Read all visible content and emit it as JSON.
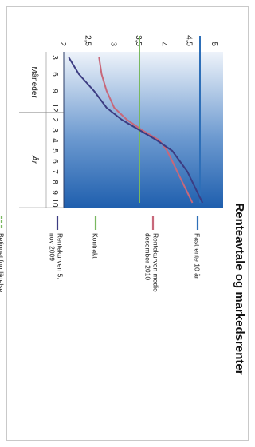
{
  "chart_data": {
    "type": "line",
    "title": "Renteavtale og markedsrenter",
    "xlabel_months": "Måneder",
    "xlabel_years": "År",
    "x_month_ticks": [
      "3",
      "6",
      "9",
      "12"
    ],
    "x_year_ticks": [
      "2",
      "3",
      "4",
      "5",
      "6",
      "7",
      "8",
      "9",
      "10"
    ],
    "y_ticks": [
      "2",
      "2,5",
      "3",
      "3,5",
      "4",
      "4,5",
      "5"
    ],
    "ylim": [
      2,
      5
    ],
    "x_positions": [
      0.25,
      0.5,
      0.75,
      1,
      2,
      3,
      4,
      5,
      6,
      7,
      8,
      9,
      10
    ],
    "legend_position": "right",
    "series": [
      {
        "name": "Fastrente 10 år",
        "style": "solid",
        "color": "#2e6fb8",
        "points": [
          [
            0,
            4.7
          ],
          [
            10,
            4.7
          ]
        ]
      },
      {
        "name": "Rentekurven medio desember 2010",
        "style": "solid",
        "color": "#c8687a",
        "points": [
          [
            0.25,
            2.7
          ],
          [
            0.5,
            2.75
          ],
          [
            0.75,
            2.85
          ],
          [
            1,
            3.0
          ],
          [
            2,
            3.25
          ],
          [
            3,
            3.55
          ],
          [
            4,
            3.9
          ],
          [
            5,
            4.05
          ],
          [
            6,
            4.15
          ],
          [
            7,
            4.25
          ],
          [
            8,
            4.35
          ],
          [
            9,
            4.45
          ],
          [
            10,
            4.55
          ]
        ]
      },
      {
        "name": "Kontrakt",
        "style": "solid",
        "color": "#79b860",
        "points": [
          [
            0,
            3.5
          ],
          [
            10,
            3.5
          ]
        ]
      },
      {
        "name": "Rentekurven 5. nov 2009",
        "style": "solid",
        "color": "#3c3c82",
        "points": [
          [
            0.25,
            2.1
          ],
          [
            0.5,
            2.3
          ],
          [
            0.75,
            2.6
          ],
          [
            1,
            2.85
          ],
          [
            2,
            3.15
          ],
          [
            3,
            3.5
          ],
          [
            4,
            3.85
          ],
          [
            5,
            4.15
          ],
          [
            6,
            4.3
          ],
          [
            7,
            4.45
          ],
          [
            8,
            4.55
          ],
          [
            9,
            4.65
          ],
          [
            10,
            4.75
          ]
        ]
      },
      {
        "name": "Betinget forpliktelse",
        "style": "dashed",
        "color": "#79b860",
        "points": []
      }
    ]
  }
}
